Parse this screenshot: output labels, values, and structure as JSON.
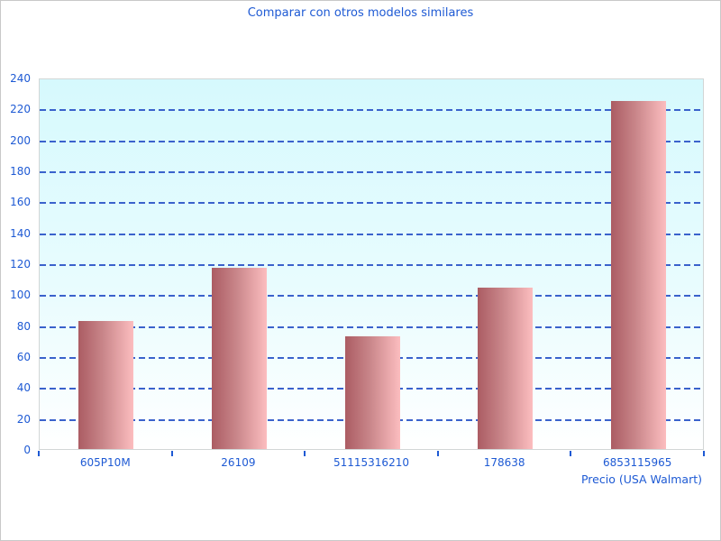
{
  "chart_data": {
    "type": "bar",
    "title": "Comparar con otros modelos similares",
    "categories": [
      "605P10M",
      "26109",
      "51115316210",
      "178638",
      "6853115965"
    ],
    "values": [
      83,
      117,
      73,
      104,
      225
    ],
    "xlabel": "Precio (USA Walmart)",
    "ylabel": "",
    "ylim": [
      0,
      240
    ],
    "ytick_step": 20,
    "grid": true,
    "grid_style": "dashed",
    "legend": false,
    "colors": {
      "title_text": "#1e5ad4",
      "tick_text": "#1e5ad4",
      "gridline": "#3a62cc",
      "bar_gradient_left": "#ab5c63",
      "bar_gradient_right": "#fcbdbf",
      "plot_bg_top": "#d6f9fd",
      "plot_bg_bottom": "#ffffff",
      "plot_border": "#d2d6d6"
    }
  }
}
